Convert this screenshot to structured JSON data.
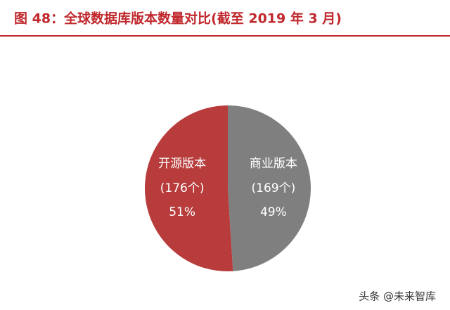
{
  "chart_data": {
    "type": "pie",
    "title": "图 48：全球数据库版本数量对比(截至 2019 年 3 月)",
    "categories": [
      "开源版本",
      "商业版本"
    ],
    "count_labels": [
      "(176个)",
      "(169个)"
    ],
    "values": [
      51,
      49
    ],
    "value_labels": [
      "51%",
      "49%"
    ],
    "colors": [
      "#b83c3c",
      "#7f7f7f"
    ]
  },
  "watermark": "头条 @未来智库"
}
